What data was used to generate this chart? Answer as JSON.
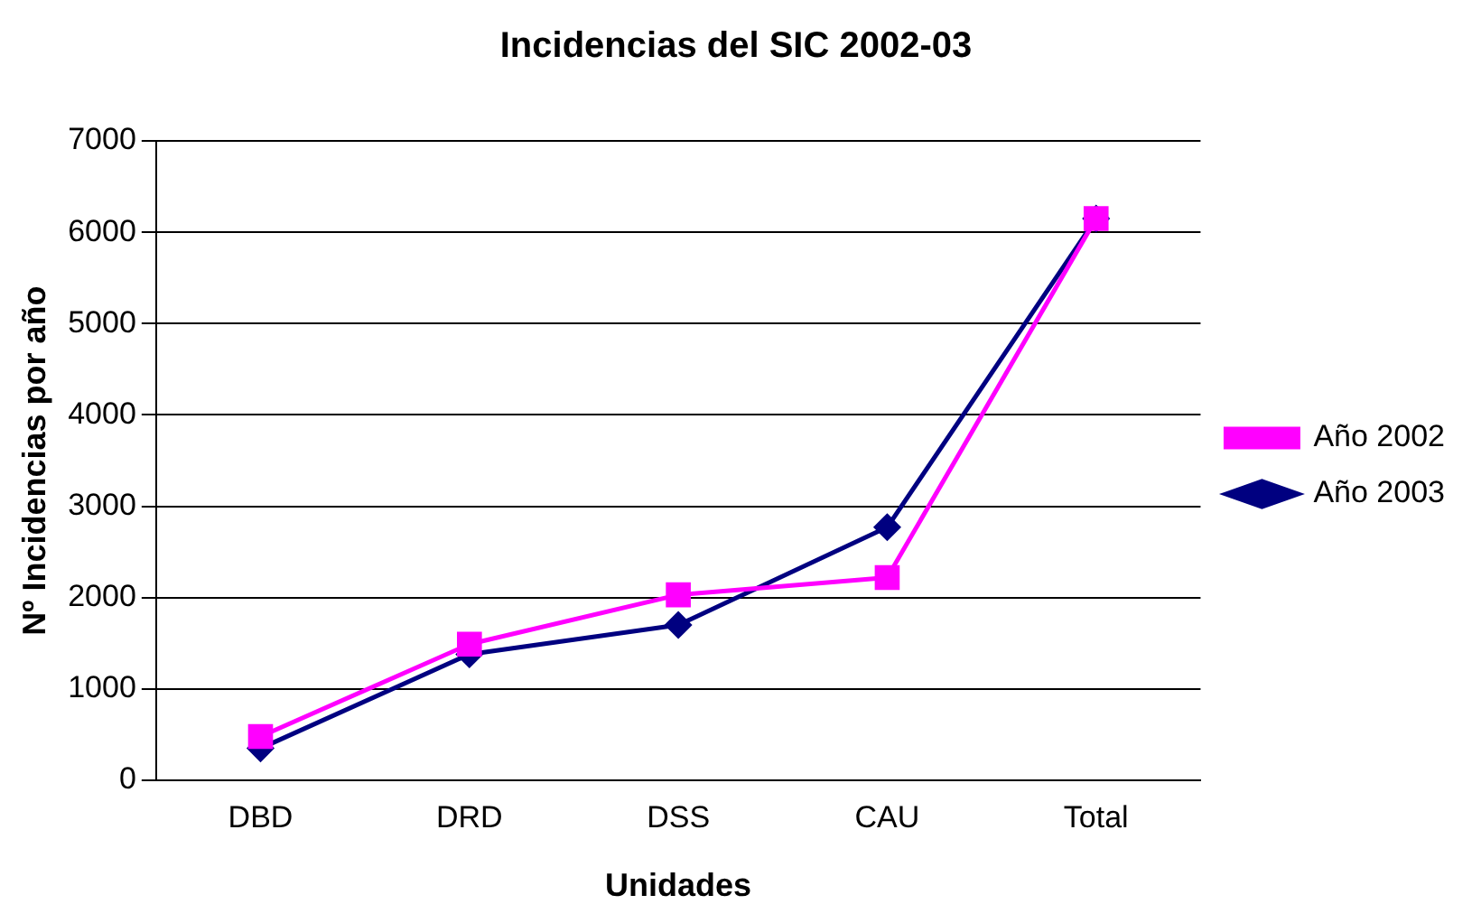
{
  "chart_data": {
    "type": "line",
    "title": "Incidencias del SIC 2002-03",
    "xlabel": "Unidades",
    "ylabel": "Nº Incidencias por año",
    "categories": [
      "DBD",
      "DRD",
      "DSS",
      "CAU",
      "Total"
    ],
    "series": [
      {
        "name": "Año 2003",
        "color": "#000080",
        "marker": "diamond",
        "values": [
          350,
          1380,
          1700,
          2770,
          6150
        ]
      },
      {
        "name": "Año 2002",
        "color": "#ff00ff",
        "marker": "square",
        "values": [
          480,
          1490,
          2030,
          2220,
          6150
        ]
      }
    ],
    "ylim": [
      0,
      7000
    ],
    "yticks": [
      0,
      1000,
      2000,
      3000,
      4000,
      5000,
      6000,
      7000
    ],
    "grid": "y",
    "legend": "right",
    "line_style": "solid"
  }
}
